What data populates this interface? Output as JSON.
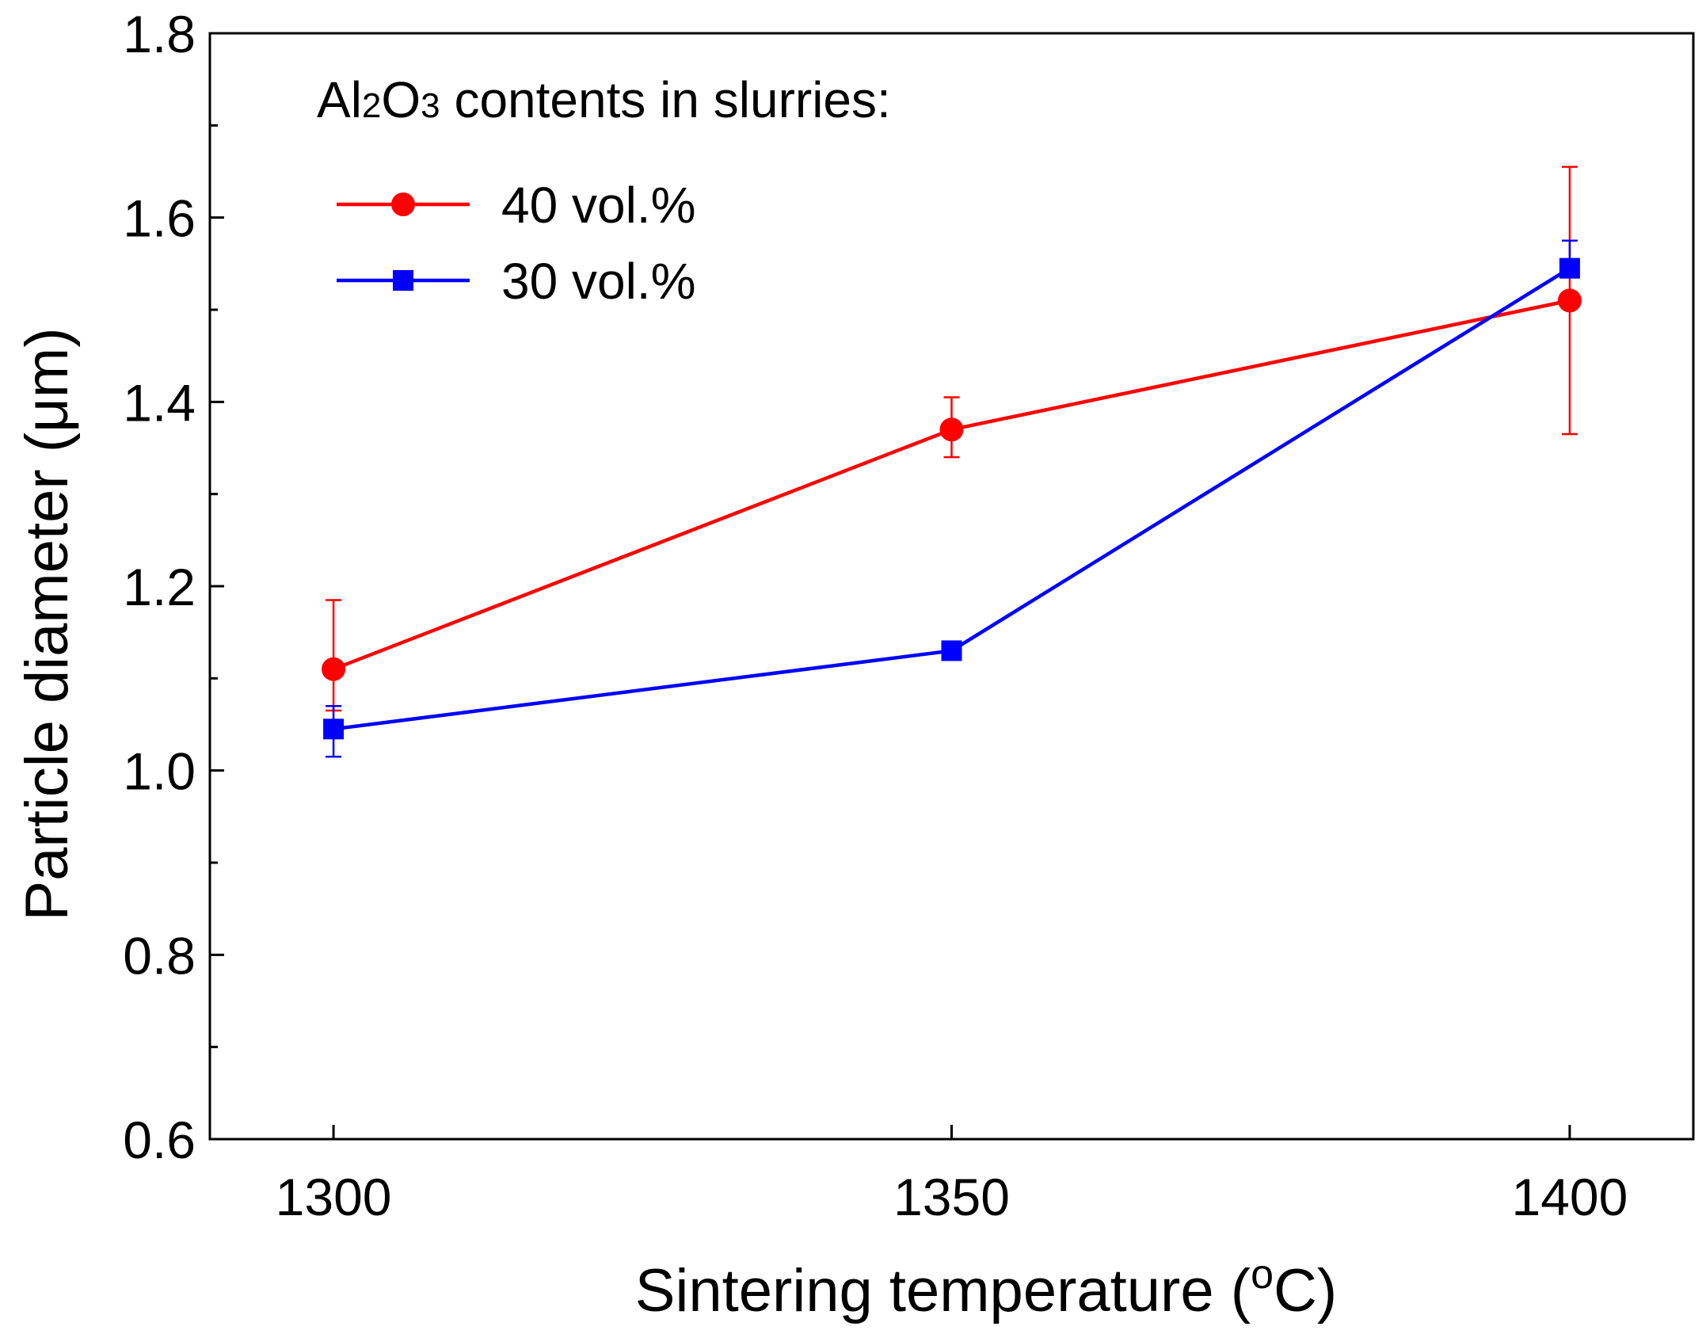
{
  "chart_data": {
    "type": "line",
    "title": "",
    "xlabel": "Sintering temperature",
    "xlabel_unit": "(°C)",
    "xlabel_unit_open": "(",
    "xlabel_unit_degree": "o",
    "xlabel_unit_close": "C)",
    "ylabel": "Particle diameter (μm)",
    "xlim": [
      1290,
      1410
    ],
    "ylim": [
      0.6,
      1.8
    ],
    "x_ticks": [
      1300,
      1350,
      1400
    ],
    "x_tick_labels": [
      "1300",
      "1350",
      "1400"
    ],
    "y_ticks": [
      0.6,
      0.8,
      1.0,
      1.2,
      1.4,
      1.6,
      1.8
    ],
    "y_tick_labels": [
      "0.6",
      "0.8",
      "1.0",
      "1.2",
      "1.4",
      "1.6",
      "1.8"
    ],
    "y_minor_ticks": [
      0.7,
      0.9,
      1.1,
      1.3,
      1.5,
      1.7
    ],
    "grid": false,
    "legend": {
      "title_parts": [
        "Al",
        "2",
        "O",
        "3",
        " contents in slurries:"
      ],
      "placement": "top-left"
    },
    "series": [
      {
        "name": "40 vol.%",
        "color": "#ff0000",
        "marker": "circle",
        "x": [
          1300,
          1350,
          1400
        ],
        "y": [
          1.11,
          1.37,
          1.51
        ],
        "err_lower": [
          1.065,
          1.34,
          1.365
        ],
        "err_upper": [
          1.185,
          1.405,
          1.655
        ]
      },
      {
        "name": "30 vol.%",
        "color": "#0000ff",
        "marker": "square",
        "x": [
          1300,
          1350,
          1400
        ],
        "y": [
          1.045,
          1.13,
          1.545
        ],
        "err_lower": [
          1.015,
          1.13,
          1.545
        ],
        "err_upper": [
          1.07,
          1.13,
          1.575
        ]
      }
    ]
  }
}
